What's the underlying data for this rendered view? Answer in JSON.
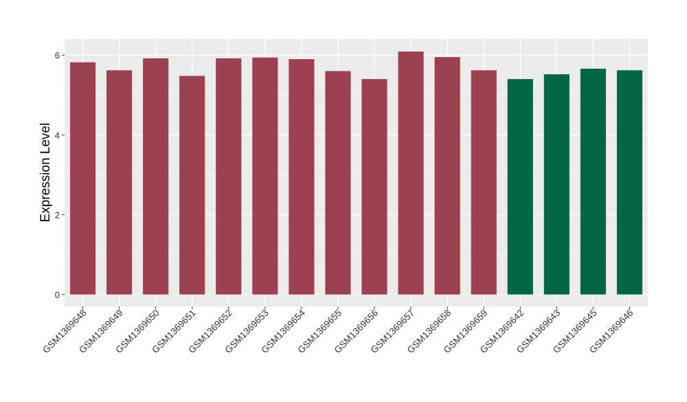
{
  "chart_data": {
    "type": "bar",
    "title": "",
    "xlabel": "",
    "ylabel": "Expression Level",
    "categories": [
      "GSM1369648",
      "GSM1369649",
      "GSM1369650",
      "GSM1369651",
      "GSM1369652",
      "GSM1369653",
      "GSM1369654",
      "GSM1369655",
      "GSM1369656",
      "GSM1369657",
      "GSM1369658",
      "GSM1369659",
      "GSM1369642",
      "GSM1369643",
      "GSM1369645",
      "GSM1369646"
    ],
    "values": [
      5.82,
      5.62,
      5.92,
      5.48,
      5.92,
      5.94,
      5.9,
      5.6,
      5.4,
      6.09,
      5.95,
      5.62,
      5.4,
      5.52,
      5.66,
      5.62
    ],
    "bar_colors": [
      "#9B4150",
      "#9B4150",
      "#9B4150",
      "#9B4150",
      "#9B4150",
      "#9B4150",
      "#9B4150",
      "#9B4150",
      "#9B4150",
      "#9B4150",
      "#9B4150",
      "#9B4150",
      "#006644",
      "#006644",
      "#006644",
      "#006644"
    ],
    "yticks": [
      0,
      2,
      4,
      6
    ],
    "ylim": [
      -0.3,
      6.4
    ],
    "grid": true,
    "panel_background": "#EBEBEB",
    "gridline_color": "#FFFFFF"
  }
}
